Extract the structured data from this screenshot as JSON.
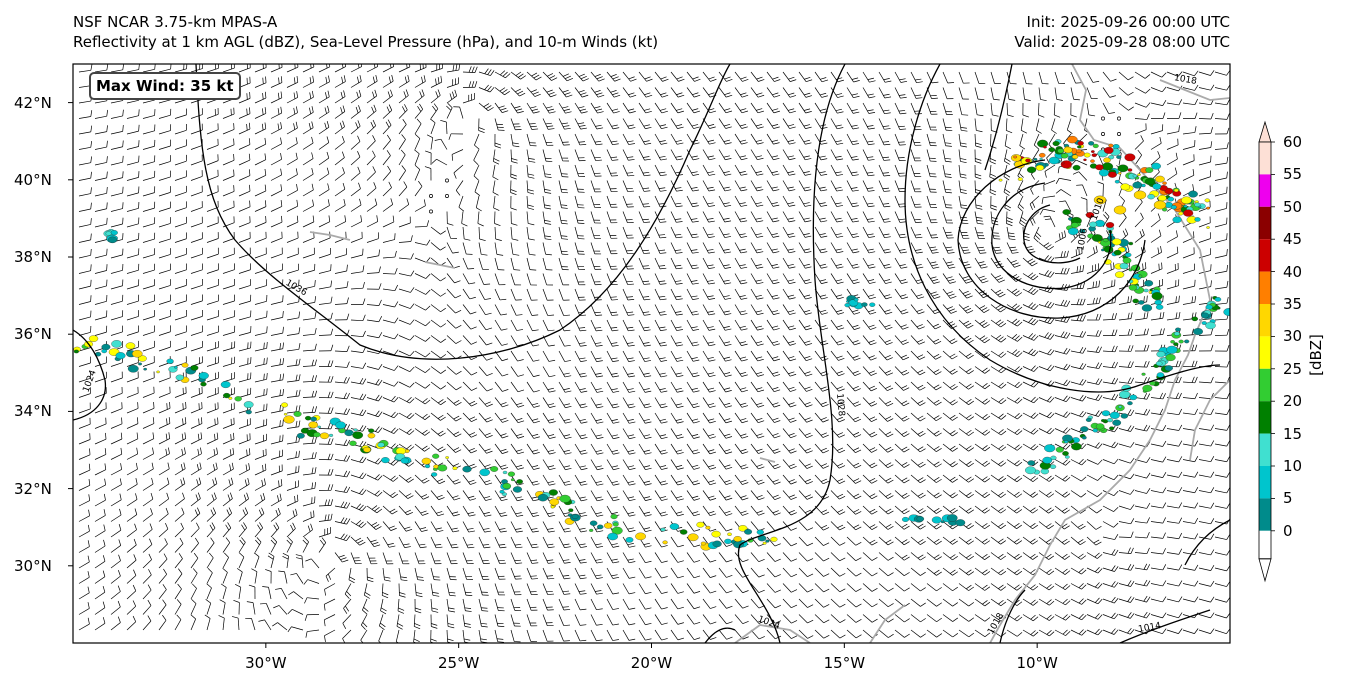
{
  "header": {
    "title_line1": "NSF NCAR 3.75-km MPAS-A",
    "title_line2": "Reflectivity at 1 km AGL (dBZ), Sea-Level Pressure (hPa), and 10-m Winds (kt)",
    "init": "Init: 2025-09-26 00:00 UTC",
    "valid": "Valid: 2025-09-28 08:00 UTC"
  },
  "map": {
    "extent": {
      "lon_min": -35,
      "lon_max": -5,
      "lat_min": 28,
      "lat_max": 43
    },
    "max_wind_label": "Max Wind: 35 kt",
    "lat_ticks": [
      {
        "value": 42,
        "label": "42°N"
      },
      {
        "value": 40,
        "label": "40°N"
      },
      {
        "value": 38,
        "label": "38°N"
      },
      {
        "value": 36,
        "label": "36°N"
      },
      {
        "value": 34,
        "label": "34°N"
      },
      {
        "value": 32,
        "label": "32°N"
      },
      {
        "value": 30,
        "label": "30°N"
      }
    ],
    "lon_ticks": [
      {
        "value": -30,
        "label": "30°W"
      },
      {
        "value": -25,
        "label": "25°W"
      },
      {
        "value": -20,
        "label": "20°W"
      },
      {
        "value": -15,
        "label": "15°W"
      },
      {
        "value": -10,
        "label": "10°W"
      }
    ],
    "isobar_labels": [
      "1036",
      "1024",
      "1028",
      "1018",
      "1006",
      "1010",
      "1014",
      "1018",
      "1024"
    ],
    "coastline_color": "#aaaaaa",
    "isobar_color": "#000000"
  },
  "colorbar": {
    "unit": "[dBZ]",
    "ticks": [
      "60",
      "55",
      "50",
      "45",
      "40",
      "35",
      "30",
      "25",
      "20",
      "15",
      "10",
      "5",
      "0"
    ],
    "colors": [
      "#fde0d6",
      "#ee00ee",
      "#8b0000",
      "#cc0000",
      "#ff7f00",
      "#ffd700",
      "#ffff00",
      "#32cd32",
      "#008000",
      "#40e0d0",
      "#00c5cd",
      "#008b8b",
      "#ffffff"
    ]
  }
}
